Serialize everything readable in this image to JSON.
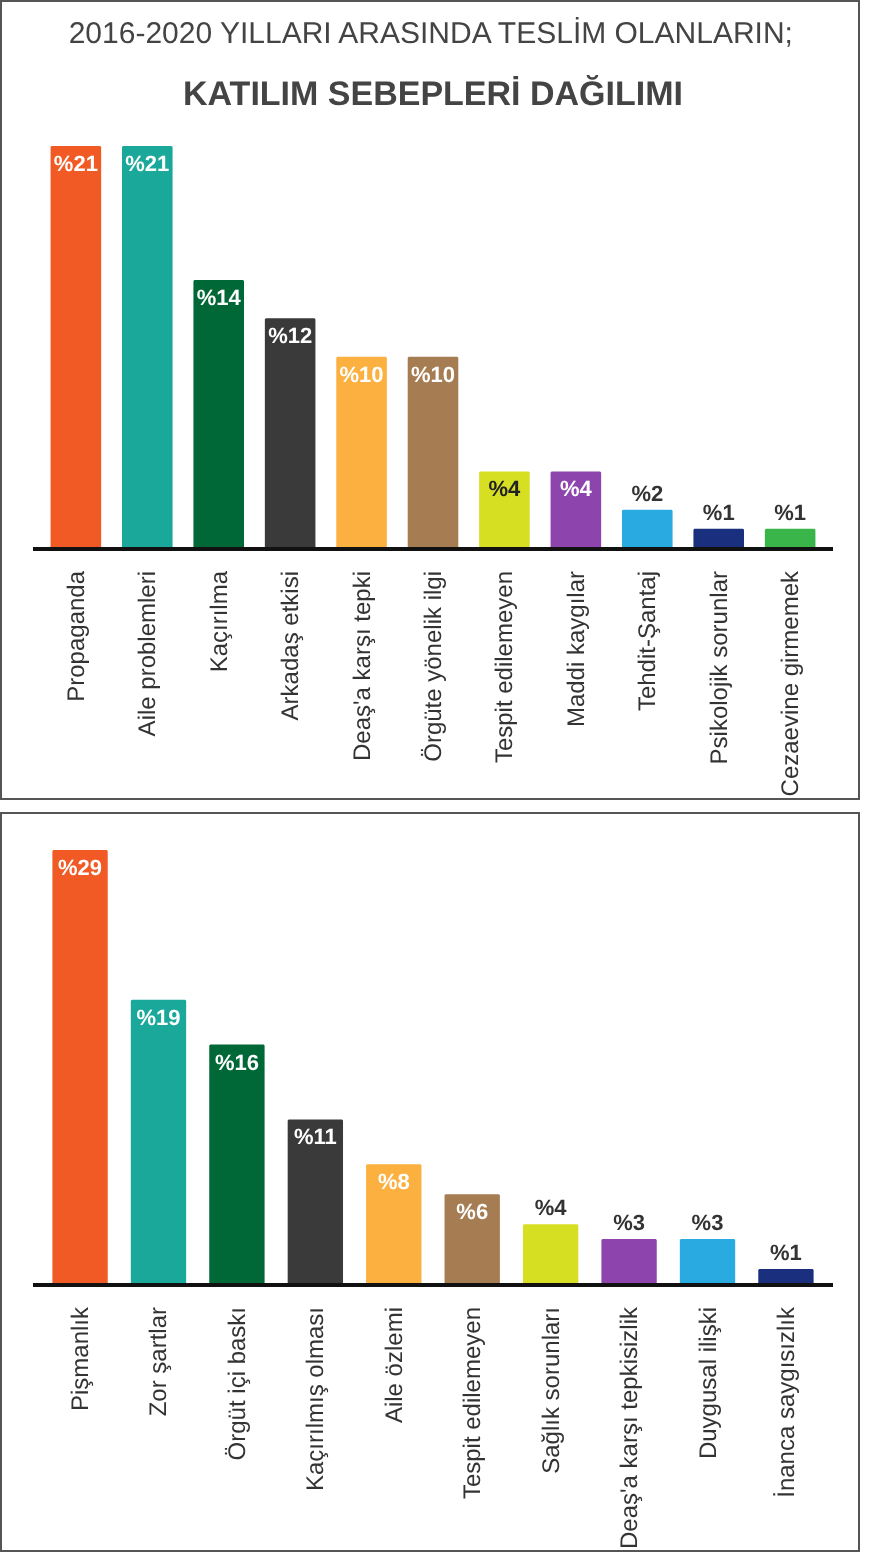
{
  "chart_data": [
    {
      "type": "bar",
      "title": "2016-2020 YILLARI ARASINDA TESLİM OLANLARIN;",
      "subtitle": "KATILIM SEBEPLERİ DAĞILIMI",
      "categories": [
        "Propaganda",
        "Aile problemleri",
        "Kaçırılma",
        "Arkadaş etkisi",
        "Deaş'a karşı tepki",
        "Örgüte yönelik ilgi",
        "Tespit edilemeyen",
        "Maddi kaygılar",
        "Tehdit-Şantaj",
        "Psikolojik sorunlar",
        "Cezaevine girmemek"
      ],
      "values": [
        21,
        21,
        14,
        12,
        10,
        10,
        4,
        4,
        2,
        1,
        1
      ],
      "value_labels": [
        "%21",
        "%21",
        "%14",
        "%12",
        "%10",
        "%10",
        "%4",
        "%4",
        "%2",
        "%1",
        "%1"
      ],
      "colors": [
        "#f15a24",
        "#1aa89a",
        "#006837",
        "#3a3a3a",
        "#fbb040",
        "#a67c52",
        "#d7df23",
        "#8e44ad",
        "#29abe2",
        "#1b2f7f",
        "#39b54a"
      ],
      "grid": false
    },
    {
      "type": "bar",
      "categories": [
        "Pişmanlık",
        "Zor şartlar",
        "Örgüt içi baskı",
        "Kaçırılmış olması",
        "Aile özlemi",
        "Tespit edilemeyen",
        "Sağlık sorunları",
        "Deaş'a karşı tepkisizlik",
        "Duygusal ilişki",
        "İnanca saygısızlık"
      ],
      "values": [
        29,
        19,
        16,
        11,
        8,
        6,
        4,
        3,
        3,
        1
      ],
      "value_labels": [
        "%29",
        "%19",
        "%16",
        "%11",
        "%8",
        "%6",
        "%4",
        "%3",
        "%3",
        "%1"
      ],
      "colors": [
        "#f15a24",
        "#1aa89a",
        "#006837",
        "#3a3a3a",
        "#fbb040",
        "#a67c52",
        "#d7df23",
        "#8e44ad",
        "#29abe2",
        "#1b2f7f"
      ],
      "grid": false
    }
  ]
}
